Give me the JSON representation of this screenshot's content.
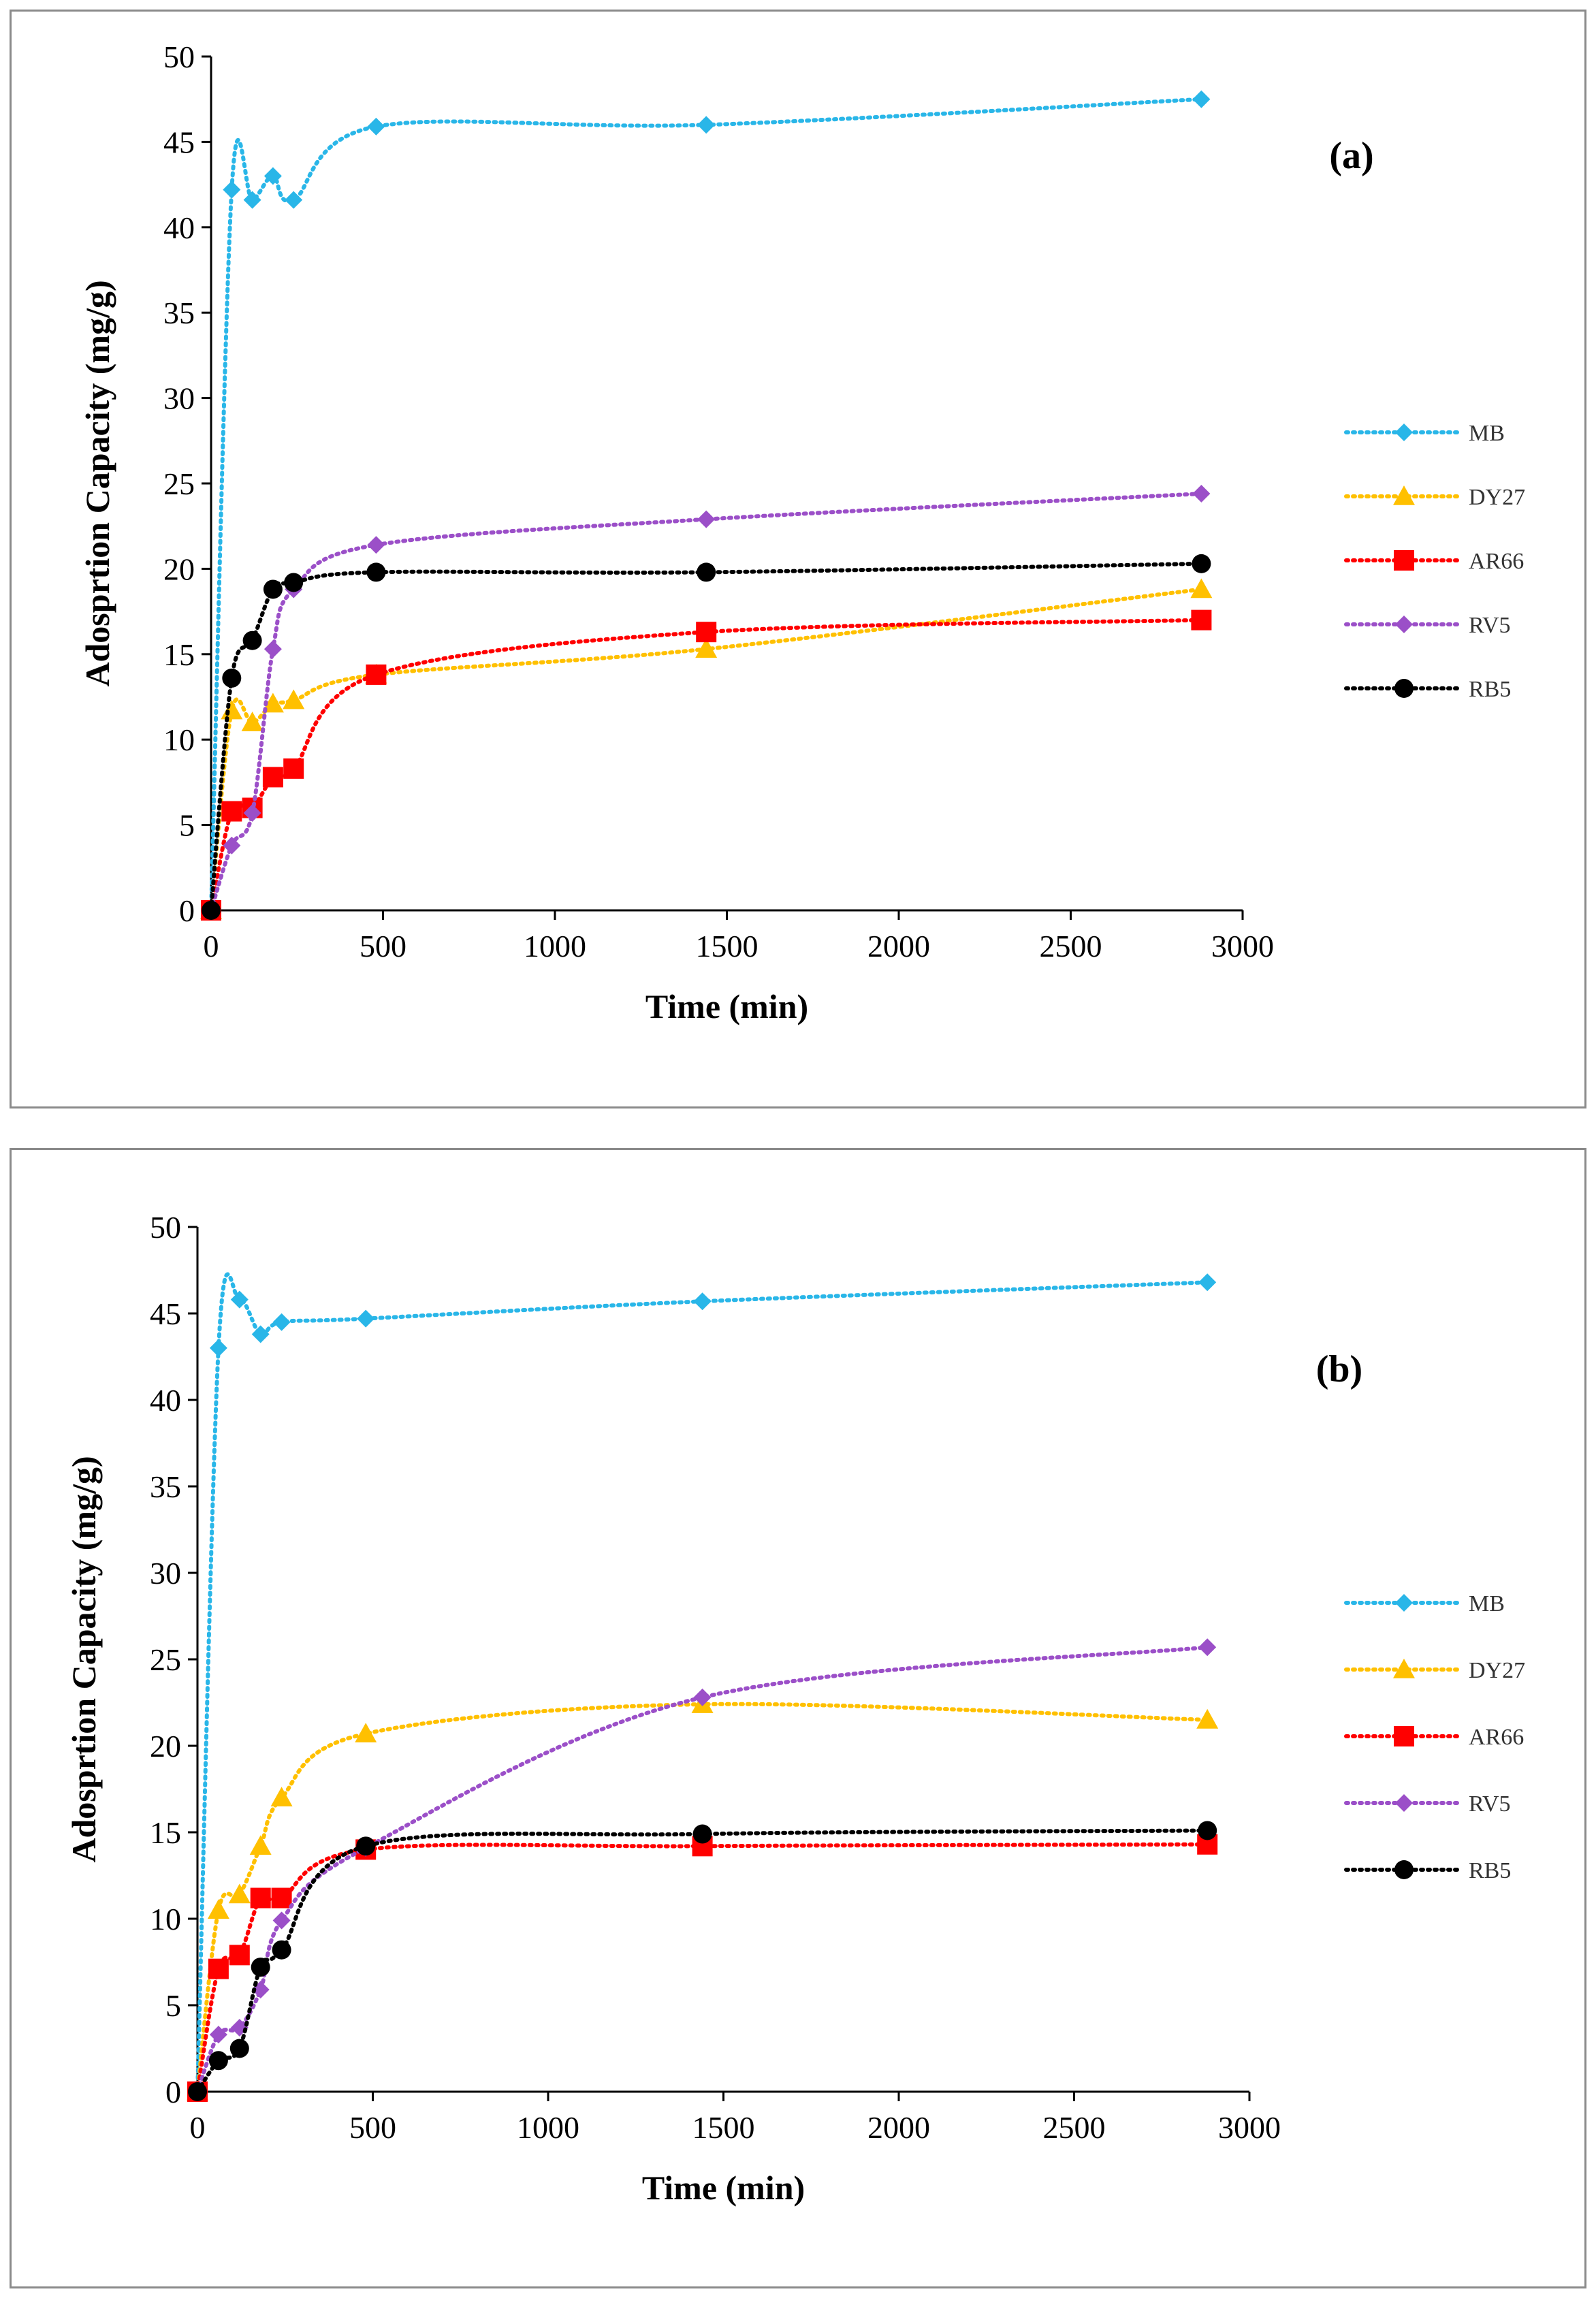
{
  "chart_data": [
    {
      "type": "line",
      "panel_label": "(a)",
      "xlabel": "Time (min)",
      "ylabel": "Adosprtion Capacity  (mg/g)",
      "xlim": [
        0,
        3000
      ],
      "ylim": [
        0,
        50
      ],
      "x_ticks": [
        "0",
        "500",
        "1000",
        "1500",
        "2000",
        "2500",
        "3000"
      ],
      "y_ticks": [
        "0",
        "5",
        "10",
        "15",
        "20",
        "25",
        "30",
        "35",
        "40",
        "45",
        "50"
      ],
      "legend_position": "right",
      "series": [
        {
          "name": "MB",
          "color": "#29b6e8",
          "marker": "diamond",
          "x": [
            0,
            60,
            120,
            180,
            240,
            480,
            1440,
            2880
          ],
          "y": [
            0,
            42.2,
            41.6,
            43.0,
            41.6,
            45.9,
            46.0,
            47.5
          ]
        },
        {
          "name": "DY27",
          "color": "#ffc000",
          "marker": "triangle",
          "x": [
            0,
            60,
            120,
            180,
            240,
            480,
            1440,
            2880
          ],
          "y": [
            0,
            11.7,
            11.0,
            12.1,
            12.3,
            13.8,
            15.3,
            18.8
          ]
        },
        {
          "name": "AR66",
          "color": "#ff0000",
          "marker": "square",
          "x": [
            0,
            60,
            120,
            180,
            240,
            480,
            1440,
            2880
          ],
          "y": [
            0,
            5.8,
            6.0,
            7.8,
            8.3,
            13.8,
            16.3,
            17.0
          ]
        },
        {
          "name": "RV5",
          "color": "#9b4fc8",
          "marker": "diamond",
          "x": [
            0,
            60,
            120,
            180,
            240,
            480,
            1440,
            2880
          ],
          "y": [
            0,
            3.8,
            5.7,
            15.3,
            18.8,
            21.4,
            22.9,
            24.4
          ]
        },
        {
          "name": "RB5",
          "color": "#000000",
          "marker": "circle",
          "x": [
            0,
            60,
            120,
            180,
            240,
            480,
            1440,
            2880
          ],
          "y": [
            0,
            13.6,
            15.8,
            18.8,
            19.2,
            19.8,
            19.8,
            20.3
          ]
        }
      ]
    },
    {
      "type": "line",
      "panel_label": "(b)",
      "xlabel": "Time (min)",
      "ylabel": "Adosprtion Capacity  (mg/g)",
      "xlim": [
        0,
        3000
      ],
      "ylim": [
        0,
        50
      ],
      "x_ticks": [
        "0",
        "500",
        "1000",
        "1500",
        "2000",
        "2500",
        "3000"
      ],
      "y_ticks": [
        "0",
        "5",
        "10",
        "15",
        "20",
        "25",
        "30",
        "35",
        "40",
        "45",
        "50"
      ],
      "legend_position": "right",
      "series": [
        {
          "name": "MB",
          "color": "#29b6e8",
          "marker": "diamond",
          "x": [
            0,
            60,
            120,
            180,
            240,
            480,
            1440,
            2880
          ],
          "y": [
            0,
            43.0,
            45.8,
            43.8,
            44.5,
            44.7,
            45.7,
            46.8
          ]
        },
        {
          "name": "DY27",
          "color": "#ffc000",
          "marker": "triangle",
          "x": [
            0,
            60,
            120,
            180,
            240,
            480,
            1440,
            2880
          ],
          "y": [
            0,
            10.5,
            11.4,
            14.2,
            17.0,
            20.7,
            22.4,
            21.5
          ]
        },
        {
          "name": "AR66",
          "color": "#ff0000",
          "marker": "square",
          "x": [
            0,
            60,
            120,
            180,
            240,
            480,
            1440,
            2880
          ],
          "y": [
            0,
            7.1,
            7.9,
            11.2,
            11.2,
            14.0,
            14.2,
            14.3
          ]
        },
        {
          "name": "RV5",
          "color": "#9b4fc8",
          "marker": "diamond",
          "x": [
            0,
            60,
            120,
            180,
            240,
            480,
            1440,
            2880
          ],
          "y": [
            0,
            3.3,
            3.7,
            5.9,
            9.9,
            14.1,
            22.8,
            25.7
          ]
        },
        {
          "name": "RB5",
          "color": "#000000",
          "marker": "circle",
          "x": [
            0,
            60,
            120,
            180,
            240,
            480,
            1440,
            2880
          ],
          "y": [
            0,
            1.8,
            2.5,
            7.2,
            8.2,
            14.2,
            14.9,
            15.1
          ]
        }
      ]
    }
  ]
}
